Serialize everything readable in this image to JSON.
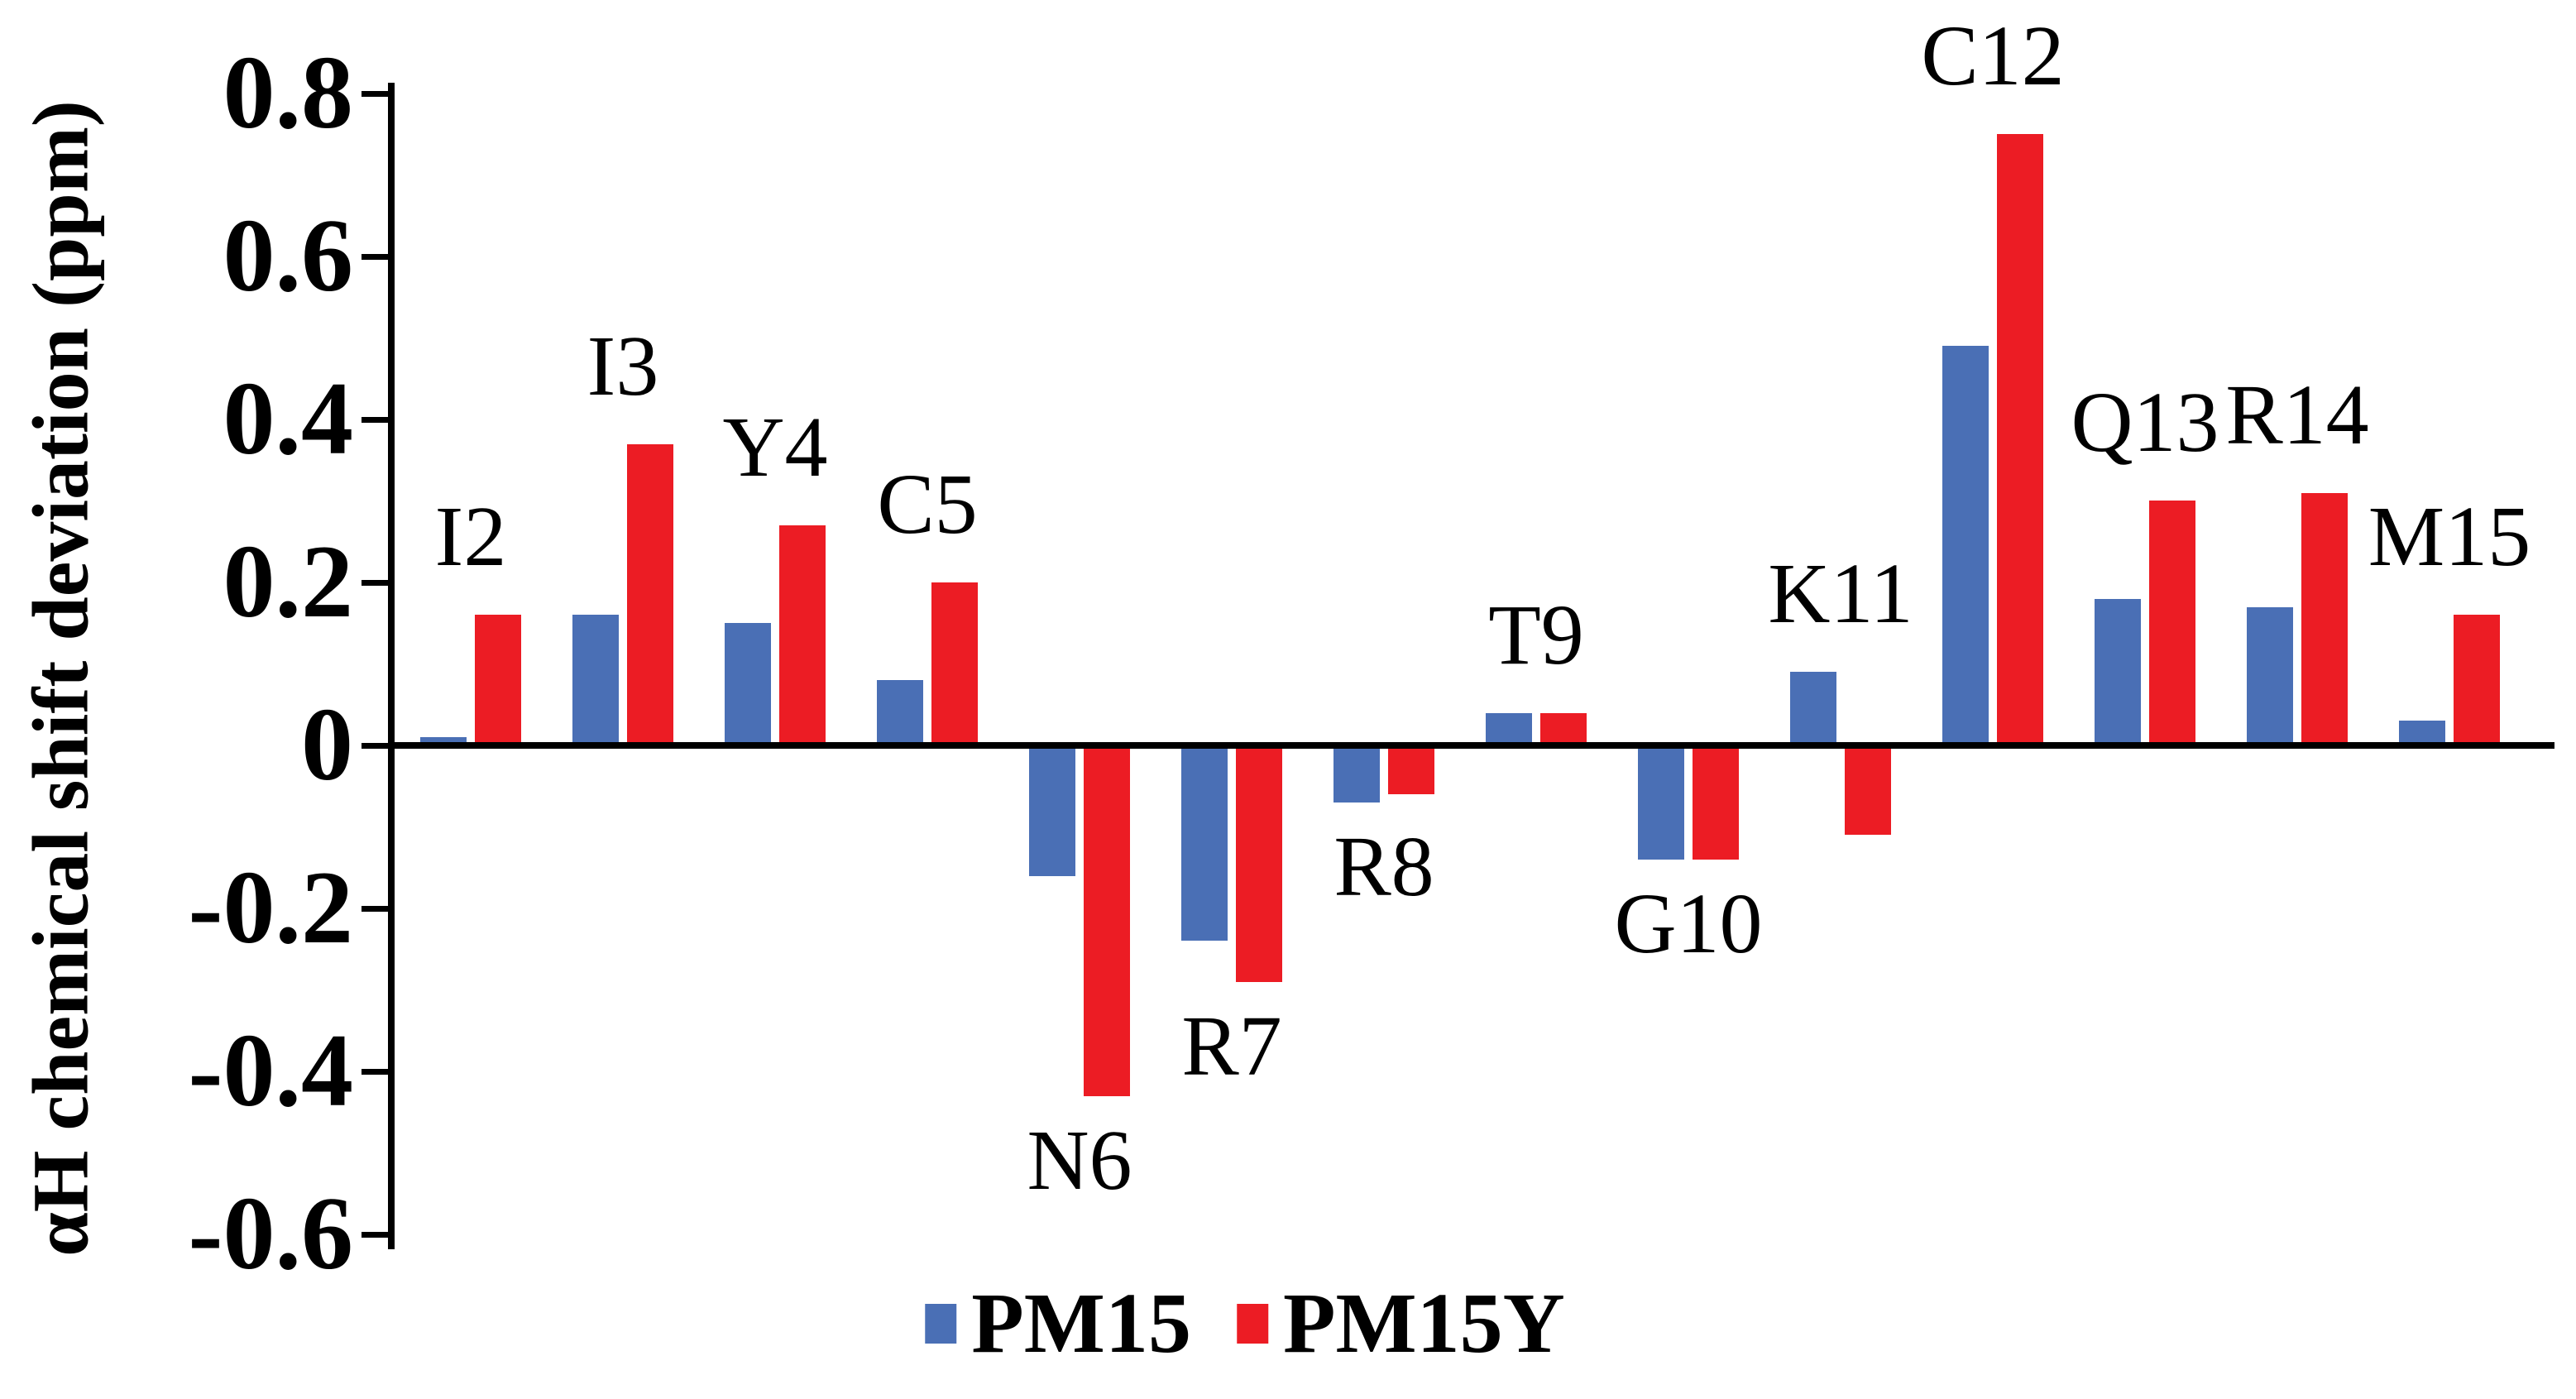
{
  "figure": {
    "background": "#ffffff",
    "axis_color": "#000000",
    "text_color": "#000000"
  },
  "chart_data": {
    "type": "bar",
    "title": "",
    "xlabel": "",
    "ylabel": "αH chemical shift deviation (ppm)",
    "categories": [
      "I2",
      "I3",
      "Y4",
      "C5",
      "N6",
      "R7",
      "R8",
      "T9",
      "G10",
      "K11",
      "C12",
      "Q13",
      "R14",
      "M15"
    ],
    "series": [
      {
        "name": "PM15",
        "color": "#4A6FB5",
        "values": [
          0.01,
          0.16,
          0.15,
          0.08,
          -0.16,
          -0.24,
          -0.07,
          0.04,
          -0.14,
          0.09,
          0.49,
          0.18,
          0.17,
          0.03
        ]
      },
      {
        "name": "PM15Y",
        "color": "#EC1C24",
        "values": [
          0.16,
          0.37,
          0.27,
          0.2,
          -0.43,
          -0.29,
          -0.06,
          0.04,
          -0.14,
          -0.11,
          0.75,
          0.3,
          0.31,
          0.16
        ]
      }
    ],
    "ylim": [
      -0.6,
      0.8
    ],
    "yticks": [
      {
        "label": "0.8",
        "value": 0.8
      },
      {
        "label": "0.6",
        "value": 0.6
      },
      {
        "label": "0.4",
        "value": 0.4
      },
      {
        "label": "0.2",
        "value": 0.2
      },
      {
        "label": "0",
        "value": 0
      },
      {
        "label": "-0.2",
        "value": -0.2
      },
      {
        "label": "-0.4",
        "value": -0.4
      },
      {
        "label": "-0.6",
        "value": -0.6
      }
    ],
    "grid": false,
    "legend_position": "bottom-center",
    "bar_label_placement": "above positive groups, below negative groups"
  }
}
